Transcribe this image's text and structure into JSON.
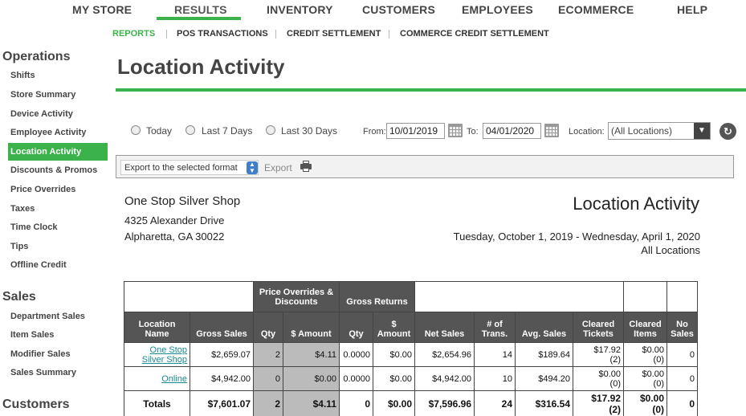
{
  "topnav": {
    "items": [
      "MY STORE",
      "RESULTS",
      "INVENTORY",
      "CUSTOMERS",
      "EMPLOYEES",
      "ECOMMERCE",
      "HELP"
    ],
    "active": "RESULTS"
  },
  "subnav": {
    "items": [
      "REPORTS",
      "POS TRANSACTIONS",
      "CREDIT SETTLEMENT",
      "COMMERCE CREDIT SETTLEMENT"
    ],
    "active": "REPORTS"
  },
  "sidebar": {
    "operations_heading": "Operations",
    "operations": [
      "Shifts",
      "Store Summary",
      "Device Activity",
      "Employee Activity",
      "Location Activity",
      "Discounts & Promos",
      "Price Overrides",
      "Taxes",
      "Time Clock",
      "Tips",
      "Offline Credit"
    ],
    "active": "Location Activity",
    "sales_heading": "Sales",
    "sales": [
      "Department Sales",
      "Item Sales",
      "Modifier Sales",
      "Sales Summary"
    ],
    "customers_heading": "Customers"
  },
  "page": {
    "title": "Location Activity"
  },
  "filters": {
    "ranges": [
      "Today",
      "Last 7 Days",
      "Last 30 Days"
    ],
    "from_label": "From:",
    "from_value": "10/01/2019",
    "to_label": "To:",
    "to_value": "04/01/2020",
    "location_label": "Location:",
    "location_value": "(All Locations)"
  },
  "export": {
    "format_placeholder": "Export to the selected format",
    "button_label": "Export"
  },
  "report": {
    "store_name": "One Stop Silver Shop",
    "address_line1": "4325 Alexander Drive",
    "address_line2": "Alpharetta, GA 30022",
    "title": "Location Activity",
    "date_range": "Tuesday, October 1, 2019 - Wednesday, April 1, 2020",
    "locations": "All Locations"
  },
  "table": {
    "group_headers": {
      "price_overrides": "Price Overrides & Discounts",
      "gross_returns": "Gross Returns"
    },
    "columns": [
      "Location Name",
      "Gross Sales",
      "Qty",
      "$ Amount",
      "Qty",
      "$ Amount",
      "Net Sales",
      "# of Trans.",
      "Avg. Sales",
      "Cleared Tickets",
      "Cleared Items",
      "No Sales"
    ],
    "rows": [
      {
        "name": "One Stop Silver Shop",
        "gross": "$2,659.07",
        "po_qty": "2",
        "po_amt": "$4.11",
        "gr_qty": "0.0000",
        "gr_amt": "$0.00",
        "net": "$2,654.96",
        "trans": "14",
        "avg": "$189.64",
        "ct_amt": "$17.92",
        "ct_cnt": "(2)",
        "ci_amt": "$0.00",
        "ci_cnt": "(0)",
        "no_sales": "0"
      },
      {
        "name": "Online",
        "gross": "$4,942.00",
        "po_qty": "0",
        "po_amt": "$0.00",
        "gr_qty": "0.0000",
        "gr_amt": "$0.00",
        "net": "$4,942.00",
        "trans": "10",
        "avg": "$494.20",
        "ct_amt": "$0.00",
        "ct_cnt": "(0)",
        "ci_amt": "$0.00",
        "ci_cnt": "(0)",
        "no_sales": "0"
      }
    ],
    "totals": {
      "label": "Totals",
      "gross": "$7,601.07",
      "po_qty": "2",
      "po_amt": "$4.11",
      "gr_qty": "0",
      "gr_amt": "$0.00",
      "net": "$7,596.96",
      "trans": "24",
      "avg": "$316.54",
      "ct_amt": "$17.92",
      "ct_cnt": "(2)",
      "ci_amt": "$0.00",
      "ci_cnt": "(0)",
      "no_sales": "0"
    }
  },
  "colors": {
    "accent": "#3bb34a",
    "header_bg": "#555555",
    "shade": "#bbbbbb",
    "link": "#1a8a95"
  }
}
